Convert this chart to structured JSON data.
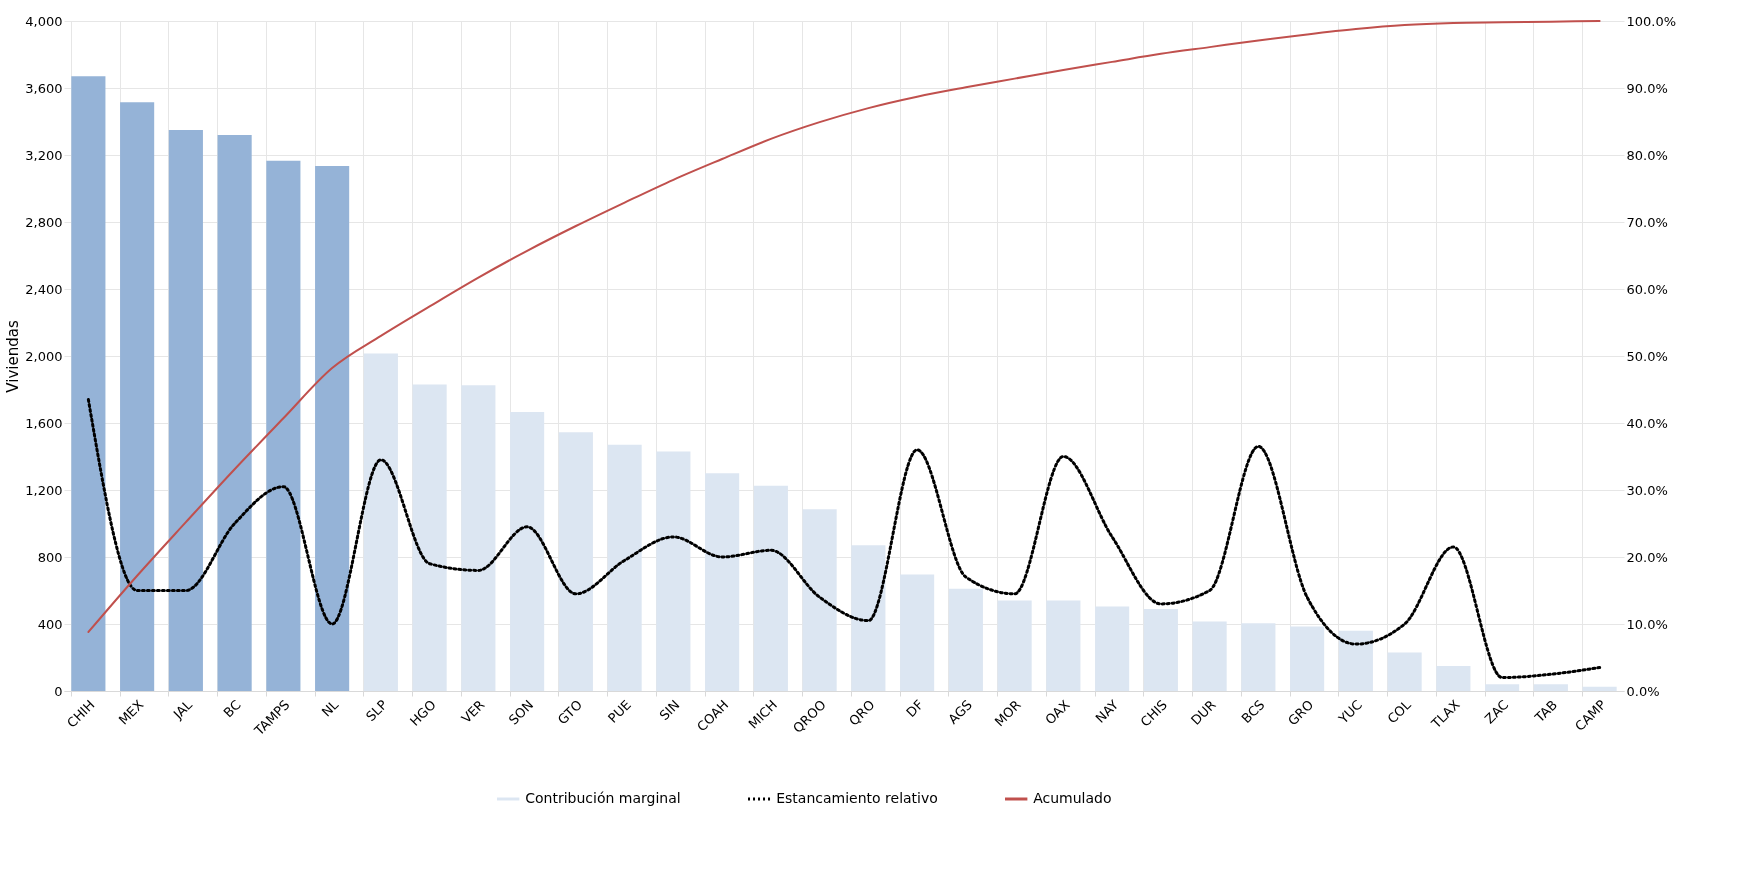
{
  "chart_data": {
    "type": "bar",
    "ylabel": "Viviendas",
    "categories": [
      "CHIH",
      "MEX",
      "JAL",
      "BC",
      "TAMPS",
      "NL",
      "SLP",
      "HGO",
      "VER",
      "SON",
      "GTO",
      "PUE",
      "SIN",
      "COAH",
      "MICH",
      "QROO",
      "QRO",
      "DF",
      "AGS",
      "MOR",
      "OAX",
      "NAY",
      "CHIS",
      "DUR",
      "BCS",
      "GRO",
      "YUC",
      "COL",
      "TLAX",
      "ZAC",
      "TAB",
      "CAMP"
    ],
    "series": [
      {
        "name": "Contribución marginal",
        "color": "#dce6f2",
        "colors": [
          "#95b3d7",
          "#95b3d7",
          "#95b3d7",
          "#95b3d7",
          "#95b3d7",
          "#95b3d7",
          "#dce6f2",
          "#dce6f2",
          "#dce6f2",
          "#dce6f2",
          "#dce6f2",
          "#dce6f2",
          "#dce6f2",
          "#dce6f2",
          "#dce6f2",
          "#dce6f2",
          "#dce6f2",
          "#dce6f2",
          "#dce6f2",
          "#dce6f2",
          "#dce6f2",
          "#dce6f2",
          "#dce6f2",
          "#dce6f2",
          "#dce6f2",
          "#dce6f2",
          "#dce6f2",
          "#dce6f2",
          "#dce6f2",
          "#dce6f2",
          "#dce6f2",
          "#dce6f2"
        ],
        "values": [
          3670,
          3515,
          3350,
          3320,
          3165,
          3135,
          2015,
          1830,
          1825,
          1665,
          1545,
          1470,
          1430,
          1300,
          1225,
          1085,
          870,
          695,
          610,
          540,
          540,
          505,
          490,
          415,
          405,
          385,
          360,
          230,
          150,
          40,
          40,
          25
        ]
      },
      {
        "name": "Estancamiento relativo",
        "type": "line",
        "axis": "y2",
        "color": "#000000",
        "line_style": "dotted",
        "values": [
          43.5,
          15,
          15,
          25,
          30.5,
          10,
          34.5,
          19,
          18,
          24.5,
          14.5,
          19.5,
          23,
          20,
          21,
          14,
          10.5,
          36,
          17,
          14.5,
          35,
          23,
          13,
          15,
          36.5,
          14,
          7,
          10,
          21.5,
          2,
          2.5,
          3.5
        ]
      },
      {
        "name": "Acumulado",
        "type": "line",
        "axis": "y2",
        "color": "#c0504d",
        "line_style": "solid",
        "values": [
          8.8,
          17.2,
          25.2,
          33.1,
          40.7,
          48.2,
          53.0,
          57.4,
          61.7,
          65.7,
          69.4,
          72.9,
          76.3,
          79.4,
          82.4,
          84.9,
          87.0,
          88.7,
          90.1,
          91.4,
          92.7,
          93.9,
          95.1,
          96.1,
          97.1,
          98.0,
          98.8,
          99.4,
          99.7,
          99.8,
          99.9,
          100
        ]
      }
    ],
    "ylim": [
      0,
      4000
    ],
    "yticks": [
      0,
      400,
      800,
      {
        "value": 1200,
        "label": "1,200"
      },
      {
        "value": 1600,
        "label": "1,600"
      },
      {
        "value": 2000,
        "label": "2,000"
      },
      {
        "value": 2400,
        "label": "2,400"
      },
      {
        "value": 2800,
        "label": "2,800"
      },
      {
        "value": 3200,
        "label": "3,200"
      },
      {
        "value": 3600,
        "label": "3,600"
      },
      {
        "value": 4000,
        "label": "4,000"
      }
    ],
    "y2lim": [
      0,
      100
    ],
    "y2ticks": [
      {
        "value": 0,
        "label": "0.0%"
      },
      {
        "value": 10,
        "label": "10.0%"
      },
      {
        "value": 20,
        "label": "20.0%"
      },
      {
        "value": 30,
        "label": "30.0%"
      },
      {
        "value": 40,
        "label": "40.0%"
      },
      {
        "value": 50,
        "label": "50.0%"
      },
      {
        "value": 60,
        "label": "60.0%"
      },
      {
        "value": 70,
        "label": "70.0%"
      },
      {
        "value": 80,
        "label": "80.0%"
      },
      {
        "value": 90,
        "label": "90.0%"
      },
      {
        "value": 100,
        "label": "100.0%"
      }
    ],
    "grid": true,
    "legend": "bottom"
  }
}
